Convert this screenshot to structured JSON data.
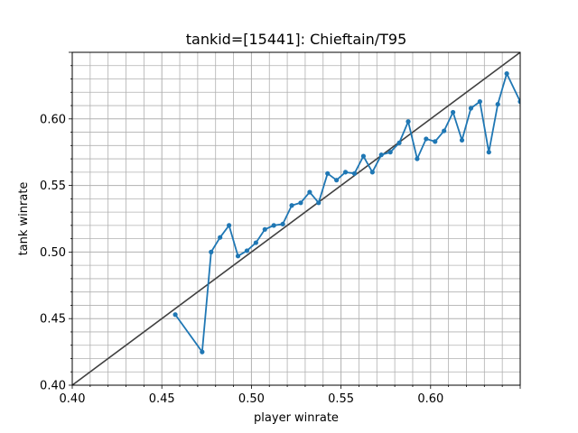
{
  "chart_data": {
    "type": "line",
    "title": "tankid=[15441]: Chieftain/T95",
    "xlabel": "player winrate",
    "ylabel": "tank winrate",
    "xlim": [
      0.4,
      0.65
    ],
    "ylim": [
      0.4,
      0.65
    ],
    "grid": true,
    "xticks": [
      "0.40",
      "0.45",
      "0.50",
      "0.55",
      "0.60"
    ],
    "yticks": [
      "0.40",
      "0.45",
      "0.50",
      "0.55",
      "0.60"
    ],
    "reference_line": {
      "x": [
        0.4,
        0.65
      ],
      "y": [
        0.4,
        0.65
      ]
    },
    "colors": {
      "series": "#1f77b4",
      "reference": "#404040",
      "grid": "#b0b0b0"
    },
    "series": [
      {
        "x": [
          0.4575,
          0.4725,
          0.4775,
          0.4825,
          0.4875,
          0.4925,
          0.4975,
          0.5025,
          0.5075,
          0.5125,
          0.5175,
          0.5225,
          0.5275,
          0.5325,
          0.5375,
          0.5425,
          0.5475,
          0.5525,
          0.5575,
          0.5625,
          0.5675,
          0.5725,
          0.5775,
          0.5825,
          0.5875,
          0.5925,
          0.5975,
          0.6025,
          0.6075,
          0.6125,
          0.6175,
          0.6225,
          0.6275,
          0.6325,
          0.6375,
          0.6425,
          0.65
        ],
        "y": [
          0.453,
          0.425,
          0.5,
          0.511,
          0.52,
          0.497,
          0.501,
          0.507,
          0.517,
          0.52,
          0.521,
          0.535,
          0.537,
          0.545,
          0.537,
          0.559,
          0.554,
          0.56,
          0.559,
          0.572,
          0.56,
          0.573,
          0.575,
          0.582,
          0.598,
          0.57,
          0.585,
          0.583,
          0.591,
          0.605,
          0.584,
          0.608,
          0.613,
          0.575,
          0.611,
          0.634,
          0.613
        ]
      }
    ]
  }
}
